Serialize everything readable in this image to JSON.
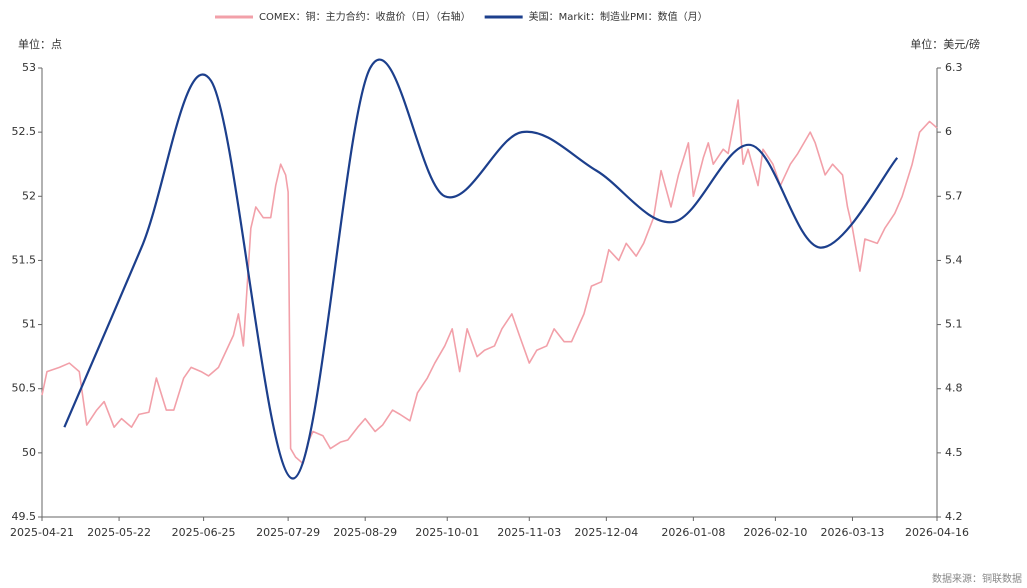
{
  "chart_data": {
    "type": "line",
    "y_unit_label": "单位：点",
    "y2_unit_label": "单位：美元/磅",
    "source": "数据来源：铜联数据",
    "xlim": [
      "2025-04-21",
      "2026-04-16"
    ],
    "xticks": [
      "2025-04-21",
      "2025-05-22",
      "2025-06-25",
      "2025-07-29",
      "2025-08-29",
      "2025-10-01",
      "2025-11-03",
      "2025-12-04",
      "2026-01-08",
      "2026-02-10",
      "2026-03-13",
      "2026-04-16"
    ],
    "ylim": [
      49.5,
      53
    ],
    "yticks": [
      49.5,
      50,
      50.5,
      51,
      51.5,
      52,
      52.5,
      53
    ],
    "y2lim": [
      4.2,
      6.3
    ],
    "y2ticks": [
      4.2,
      4.5,
      4.8,
      5.1,
      5.4,
      5.7,
      6,
      6.3
    ],
    "series": [
      {
        "name": "COMEX：铜：主力合约：收盘价（日）（右轴）",
        "color": "#f2a0a9",
        "axis": "y2",
        "smooth": false,
        "x": [
          "2025-04-21",
          "2025-04-23",
          "2025-04-28",
          "2025-05-02",
          "2025-05-06",
          "2025-05-09",
          "2025-05-13",
          "2025-05-16",
          "2025-05-20",
          "2025-05-23",
          "2025-05-27",
          "2025-05-30",
          "2025-06-03",
          "2025-06-06",
          "2025-06-10",
          "2025-06-13",
          "2025-06-17",
          "2025-06-20",
          "2025-06-24",
          "2025-06-27",
          "2025-07-01",
          "2025-07-03",
          "2025-07-07",
          "2025-07-09",
          "2025-07-11",
          "2025-07-14",
          "2025-07-16",
          "2025-07-19",
          "2025-07-22",
          "2025-07-24",
          "2025-07-26",
          "2025-07-28",
          "2025-07-29",
          "2025-07-30",
          "2025-08-01",
          "2025-08-04",
          "2025-08-06",
          "2025-08-08",
          "2025-08-12",
          "2025-08-15",
          "2025-08-19",
          "2025-08-22",
          "2025-08-26",
          "2025-08-29",
          "2025-09-02",
          "2025-09-05",
          "2025-09-09",
          "2025-09-12",
          "2025-09-16",
          "2025-09-19",
          "2025-09-23",
          "2025-09-26",
          "2025-09-30",
          "2025-10-03",
          "2025-10-06",
          "2025-10-09",
          "2025-10-13",
          "2025-10-16",
          "2025-10-20",
          "2025-10-23",
          "2025-10-27",
          "2025-10-30",
          "2025-11-03",
          "2025-11-06",
          "2025-11-10",
          "2025-11-13",
          "2025-11-17",
          "2025-11-20",
          "2025-11-25",
          "2025-11-28",
          "2025-12-02",
          "2025-12-05",
          "2025-12-09",
          "2025-12-12",
          "2025-12-16",
          "2025-12-19",
          "2025-12-23",
          "2025-12-26",
          "2025-12-30",
          "2026-01-02",
          "2026-01-06",
          "2026-01-08",
          "2026-01-12",
          "2026-01-14",
          "2026-01-16",
          "2026-01-20",
          "2026-01-22",
          "2026-01-26",
          "2026-01-28",
          "2026-01-30",
          "2026-02-03",
          "2026-02-05",
          "2026-02-09",
          "2026-02-12",
          "2026-02-16",
          "2026-02-19",
          "2026-02-24",
          "2026-02-26",
          "2026-03-02",
          "2026-03-05",
          "2026-03-09",
          "2026-03-11",
          "2026-03-13",
          "2026-03-16",
          "2026-03-18",
          "2026-03-23",
          "2026-03-26",
          "2026-03-30",
          "2026-04-02",
          "2026-04-06",
          "2026-04-09",
          "2026-04-13",
          "2026-04-16"
        ],
        "values": [
          4.77,
          4.88,
          4.9,
          4.92,
          4.88,
          4.63,
          4.7,
          4.74,
          4.62,
          4.66,
          4.62,
          4.68,
          4.69,
          4.85,
          4.7,
          4.7,
          4.85,
          4.9,
          4.88,
          4.86,
          4.9,
          4.95,
          5.05,
          5.15,
          5,
          5.55,
          5.65,
          5.6,
          5.6,
          5.75,
          5.85,
          5.8,
          5.72,
          4.52,
          4.48,
          4.45,
          4.55,
          4.6,
          4.58,
          4.52,
          4.55,
          4.56,
          4.62,
          4.66,
          4.6,
          4.63,
          4.7,
          4.68,
          4.65,
          4.78,
          4.85,
          4.92,
          5,
          5.08,
          4.88,
          5.08,
          4.95,
          4.98,
          5,
          5.08,
          5.15,
          5.05,
          4.92,
          4.98,
          5,
          5.08,
          5.02,
          5.02,
          5.15,
          5.28,
          5.3,
          5.45,
          5.4,
          5.48,
          5.42,
          5.48,
          5.6,
          5.82,
          5.65,
          5.8,
          5.95,
          5.7,
          5.88,
          5.95,
          5.85,
          5.92,
          5.9,
          6.15,
          5.85,
          5.92,
          5.75,
          5.92,
          5.85,
          5.75,
          5.85,
          5.9,
          6,
          5.95,
          5.8,
          5.85,
          5.8,
          5.65,
          5.55,
          5.35,
          5.5,
          5.48,
          5.55,
          5.62,
          5.7,
          5.85,
          6,
          6.05,
          6.02
        ]
      },
      {
        "name": "美国：Markit：制造业PMI：数值（月）",
        "color": "#1c3f8c",
        "smooth": true,
        "x": [
          "2025-04-30",
          "2025-05-31",
          "2025-06-28",
          "2025-07-31",
          "2025-08-31",
          "2025-09-30",
          "2025-10-31",
          "2025-11-30",
          "2025-12-31",
          "2026-01-31",
          "2026-02-28",
          "2026-03-31"
        ],
        "values": [
          50.2,
          51.6,
          52.9,
          49.8,
          53,
          52,
          52.5,
          52.2,
          51.8,
          52.4,
          51.6,
          52.3
        ]
      }
    ]
  }
}
